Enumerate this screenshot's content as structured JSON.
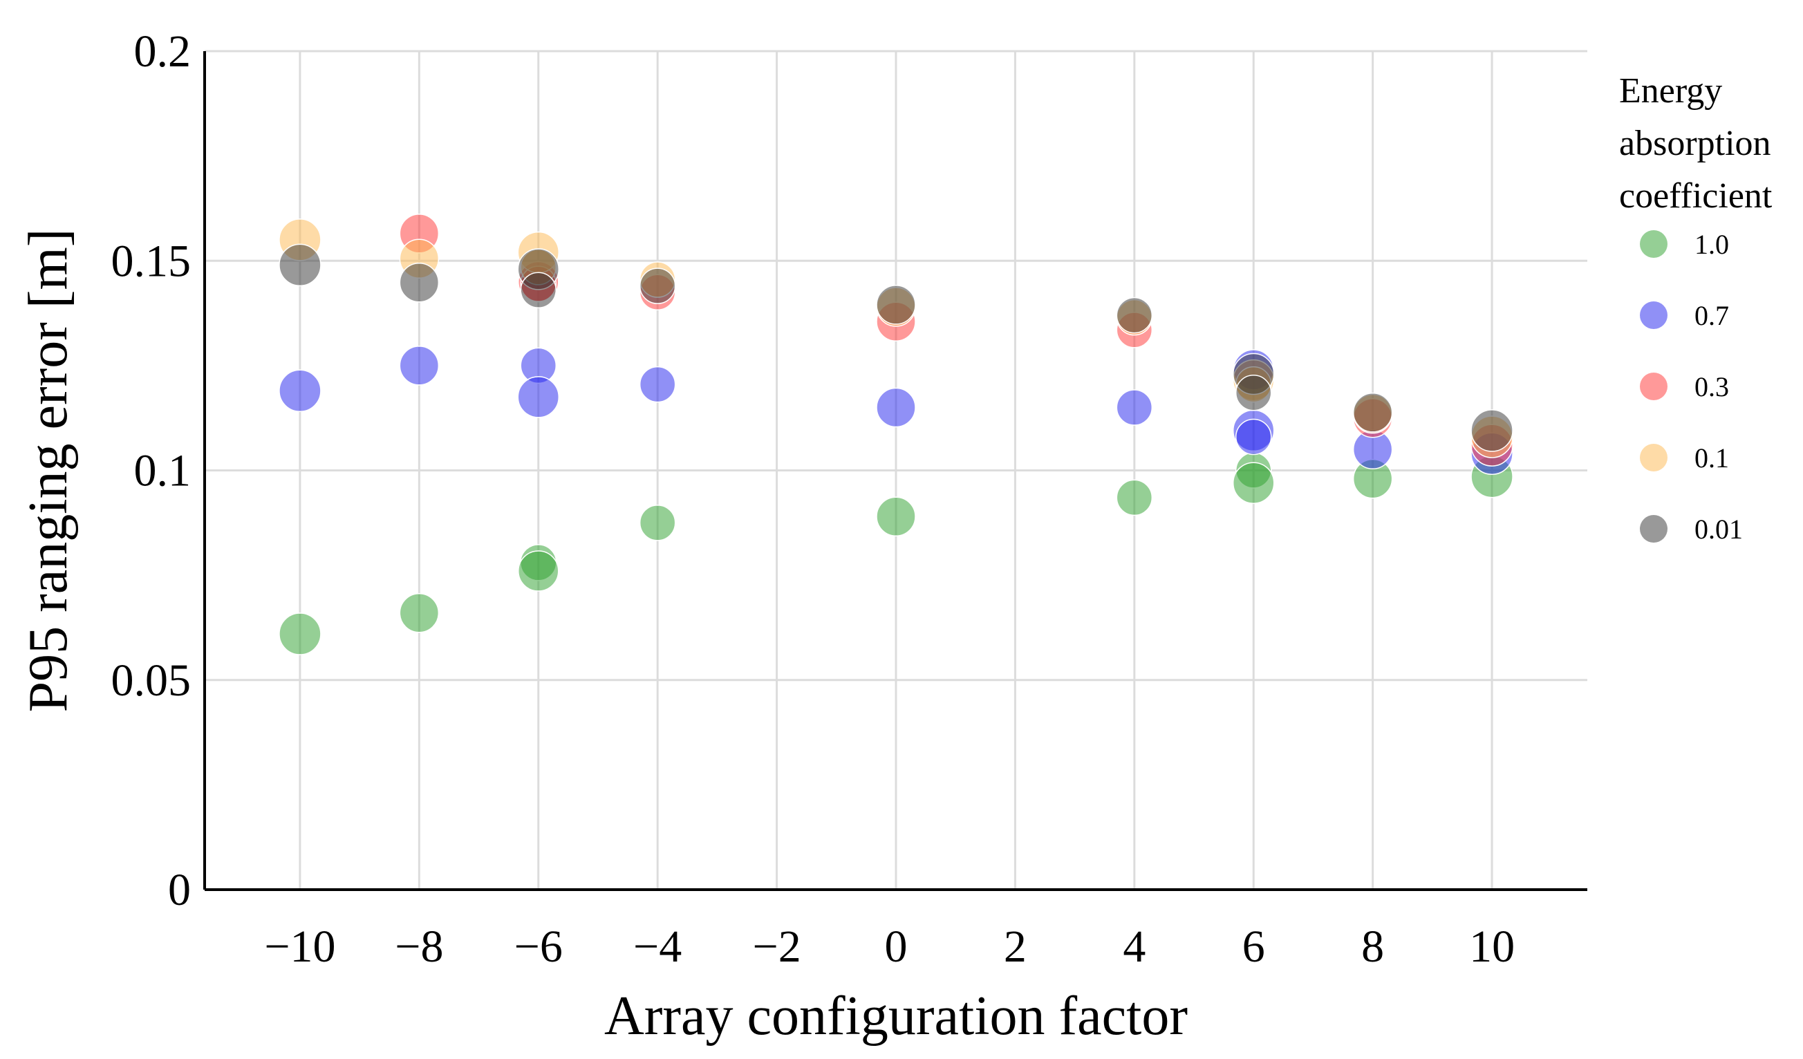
{
  "chart_data": {
    "type": "scatter",
    "title": "",
    "xlabel": "Array configuration factor",
    "ylabel": "P95 ranging error [m]",
    "xlim": [
      -11.6,
      11.6
    ],
    "ylim": [
      0,
      0.2
    ],
    "x_ticks": [
      -10,
      -8,
      -6,
      -4,
      -2,
      0,
      2,
      4,
      6,
      8,
      10
    ],
    "x_tick_labels": [
      "−10",
      "−8",
      "−6",
      "−4",
      "−2",
      "0",
      "2",
      "4",
      "6",
      "8",
      "10"
    ],
    "y_ticks": [
      0,
      0.05,
      0.1,
      0.15,
      0.2
    ],
    "y_tick_labels": [
      "0",
      "0.05",
      "0.1",
      "0.15",
      "0.2"
    ],
    "grid": true,
    "legend": {
      "title_lines": [
        "Energy",
        "absorption",
        "coefficient"
      ],
      "placement": "right"
    },
    "series": [
      {
        "name": "1.0",
        "color": "#2ca02c",
        "points": [
          {
            "x": -10,
            "y": 0.061,
            "size": 1.0
          },
          {
            "x": -8,
            "y": 0.066,
            "size": 0.8
          },
          {
            "x": -6,
            "y": 0.078,
            "size": 0.6
          },
          {
            "x": -6,
            "y": 0.076,
            "size": 0.9
          },
          {
            "x": -4,
            "y": 0.0875,
            "size": 0.55
          },
          {
            "x": 0,
            "y": 0.089,
            "size": 0.8
          },
          {
            "x": 4,
            "y": 0.0935,
            "size": 0.55
          },
          {
            "x": 6,
            "y": 0.1,
            "size": 0.55
          },
          {
            "x": 6,
            "y": 0.097,
            "size": 0.95
          },
          {
            "x": 8,
            "y": 0.098,
            "size": 0.8
          },
          {
            "x": 10,
            "y": 0.0985,
            "size": 1.0
          }
        ]
      },
      {
        "name": "0.7",
        "color": "#2222ee",
        "points": [
          {
            "x": -10,
            "y": 0.119,
            "size": 1.0
          },
          {
            "x": -8,
            "y": 0.125,
            "size": 0.8
          },
          {
            "x": -6,
            "y": 0.125,
            "size": 0.55
          },
          {
            "x": -6,
            "y": 0.1175,
            "size": 0.95
          },
          {
            "x": -4,
            "y": 0.1205,
            "size": 0.55
          },
          {
            "x": 0,
            "y": 0.115,
            "size": 0.8
          },
          {
            "x": 4,
            "y": 0.115,
            "size": 0.55
          },
          {
            "x": 6,
            "y": 0.124,
            "size": 0.9
          },
          {
            "x": 6,
            "y": 0.1095,
            "size": 0.95
          },
          {
            "x": 6,
            "y": 0.108,
            "size": 0.55
          },
          {
            "x": 8,
            "y": 0.105,
            "size": 0.8
          },
          {
            "x": 10,
            "y": 0.104,
            "size": 1.0
          }
        ]
      },
      {
        "name": "0.3",
        "color": "#ff3333",
        "points": [
          {
            "x": -8,
            "y": 0.1565,
            "size": 0.8
          },
          {
            "x": -6,
            "y": 0.145,
            "size": 0.9
          },
          {
            "x": -6,
            "y": 0.1445,
            "size": 0.55
          },
          {
            "x": -4,
            "y": 0.1425,
            "size": 0.55
          },
          {
            "x": 0,
            "y": 0.1355,
            "size": 0.8
          },
          {
            "x": 4,
            "y": 0.1335,
            "size": 0.55
          },
          {
            "x": 8,
            "y": 0.1125,
            "size": 0.8
          },
          {
            "x": 10,
            "y": 0.106,
            "size": 1.0
          }
        ]
      },
      {
        "name": "0.1",
        "color": "#fdb750",
        "points": [
          {
            "x": -10,
            "y": 0.155,
            "size": 1.0
          },
          {
            "x": -8,
            "y": 0.1505,
            "size": 0.8
          },
          {
            "x": -6,
            "y": 0.152,
            "size": 0.95
          },
          {
            "x": -6,
            "y": 0.1485,
            "size": 0.55
          },
          {
            "x": -4,
            "y": 0.1455,
            "size": 0.55
          },
          {
            "x": 0,
            "y": 0.139,
            "size": 0.8
          },
          {
            "x": 4,
            "y": 0.1365,
            "size": 0.55
          },
          {
            "x": 6,
            "y": 0.1215,
            "size": 0.95
          },
          {
            "x": 6,
            "y": 0.1205,
            "size": 0.55
          },
          {
            "x": 8,
            "y": 0.1135,
            "size": 0.8
          },
          {
            "x": 10,
            "y": 0.108,
            "size": 1.0
          }
        ]
      },
      {
        "name": "0.01",
        "color": "#333333",
        "points": [
          {
            "x": -10,
            "y": 0.149,
            "size": 1.0
          },
          {
            "x": -8,
            "y": 0.1448,
            "size": 0.8
          },
          {
            "x": -6,
            "y": 0.148,
            "size": 0.95
          },
          {
            "x": -6,
            "y": 0.143,
            "size": 0.55
          },
          {
            "x": -4,
            "y": 0.144,
            "size": 0.55
          },
          {
            "x": 0,
            "y": 0.1395,
            "size": 0.8
          },
          {
            "x": 4,
            "y": 0.137,
            "size": 0.55
          },
          {
            "x": 6,
            "y": 0.123,
            "size": 0.95
          },
          {
            "x": 6,
            "y": 0.1185,
            "size": 0.55
          },
          {
            "x": 8,
            "y": 0.1138,
            "size": 0.8
          },
          {
            "x": 10,
            "y": 0.1095,
            "size": 1.0
          }
        ]
      }
    ]
  }
}
